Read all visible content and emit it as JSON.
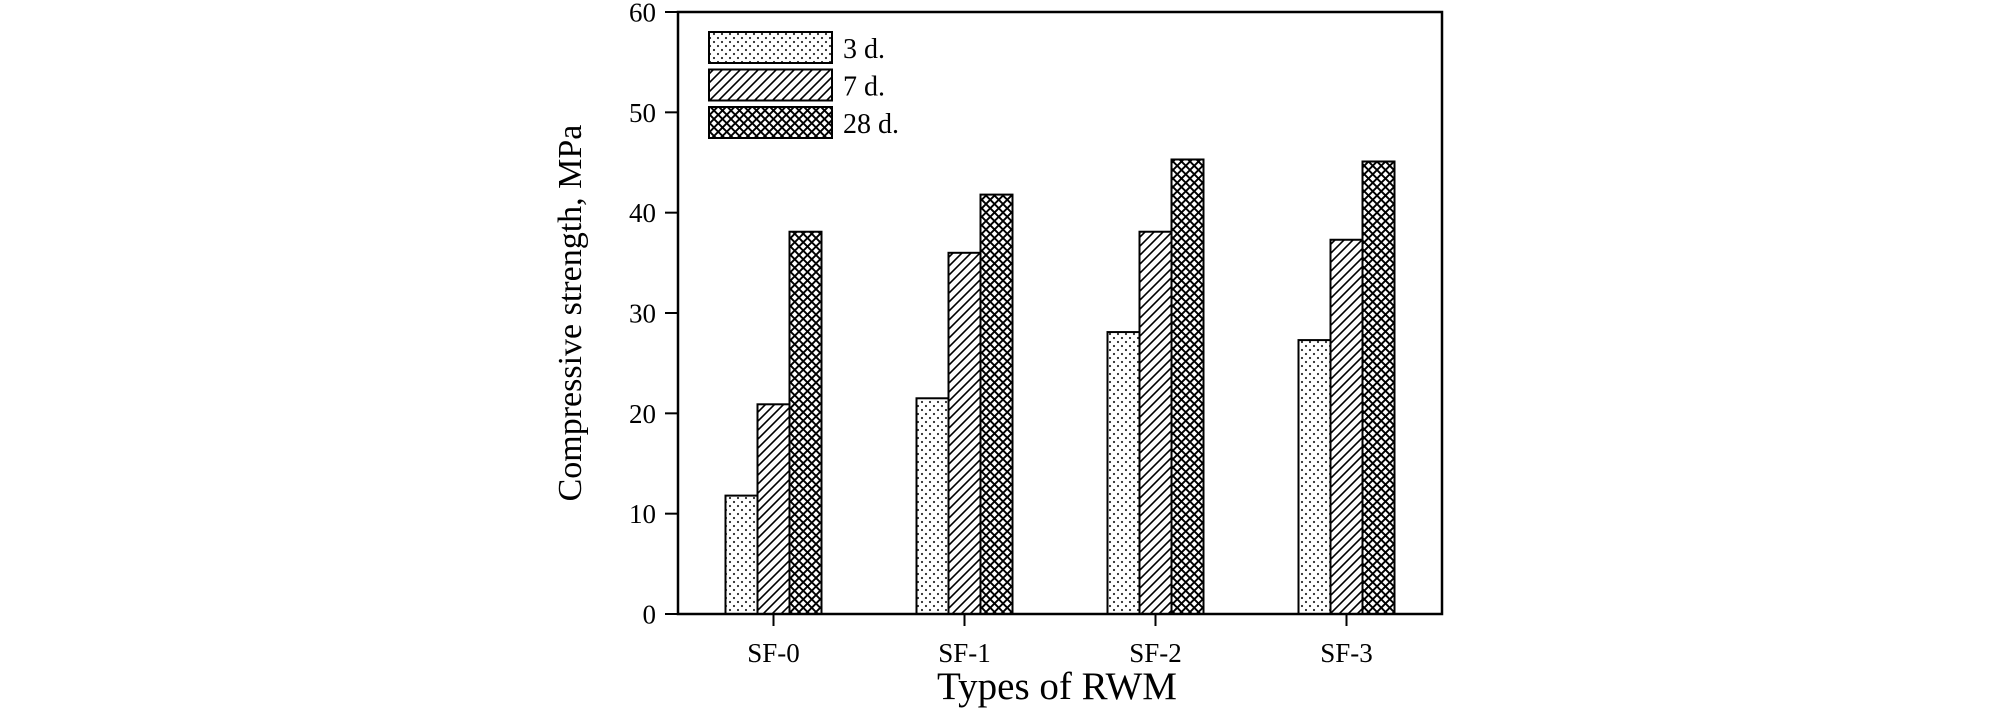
{
  "chart_data": {
    "type": "bar",
    "title": "",
    "categories": [
      "SF-0",
      "SF-1",
      "SF-2",
      "SF-3"
    ],
    "series": [
      {
        "name": "3 d.",
        "pattern": "dots",
        "values": [
          11.8,
          21.5,
          28.1,
          27.3
        ]
      },
      {
        "name": "7 d.",
        "pattern": "diagonal-hatch",
        "values": [
          20.9,
          36.0,
          38.1,
          37.3
        ]
      },
      {
        "name": "28 d.",
        "pattern": "crosshatch",
        "values": [
          38.1,
          41.8,
          45.3,
          45.1
        ]
      }
    ],
    "xlabel": "Types of RWM",
    "ylabel": "Compressive strength, MPa",
    "ylim": [
      0,
      60
    ],
    "yticks": [
      0,
      10,
      20,
      30,
      40,
      50,
      60
    ],
    "grid": false,
    "legend_position": "inside-top-left",
    "bar_fill": "#ffffff",
    "stroke_color": "#000000"
  }
}
